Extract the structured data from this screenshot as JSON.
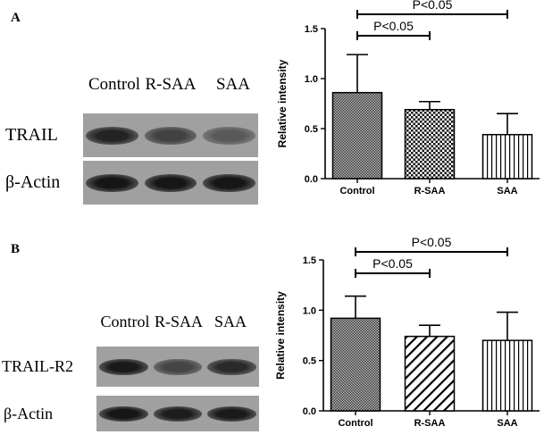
{
  "panels": [
    {
      "letter": "A",
      "blot": {
        "lanes": [
          "Control",
          "R-SAA",
          "SAA"
        ],
        "rows": [
          {
            "label": "TRAIL",
            "intensities": [
              0.85,
              0.62,
              0.45
            ]
          },
          {
            "label": "β-Actin",
            "intensities": [
              0.95,
              0.95,
              0.95
            ]
          }
        ]
      }
    },
    {
      "letter": "B",
      "blot": {
        "lanes": [
          "Control",
          "R-SAA",
          "SAA"
        ],
        "rows": [
          {
            "label": "TRAIL-R2",
            "intensities": [
              0.92,
              0.6,
              0.8
            ]
          },
          {
            "label": "β-Actin",
            "intensities": [
              0.95,
              0.9,
              0.92
            ]
          }
        ]
      }
    }
  ],
  "chart_data": [
    {
      "type": "bar",
      "categories": [
        "Control",
        "R-SAA",
        "SAA"
      ],
      "values": [
        0.86,
        0.69,
        0.44
      ],
      "errors": [
        0.38,
        0.08,
        0.21
      ],
      "ylabel": "Relative intensity",
      "ylim": [
        0,
        1.5
      ],
      "yticks": [
        "0.0",
        "0.5",
        "1.0",
        "1.5"
      ],
      "patterns": [
        "fine-dots",
        "checker",
        "vertical-lines"
      ],
      "significance": [
        {
          "from": 0,
          "to": 1,
          "label": "P<0.05"
        },
        {
          "from": 0,
          "to": 2,
          "label": "P<0.05"
        }
      ]
    },
    {
      "type": "bar",
      "categories": [
        "Control",
        "R-SAA",
        "SAA"
      ],
      "values": [
        0.92,
        0.74,
        0.7
      ],
      "errors": [
        0.22,
        0.11,
        0.28
      ],
      "ylabel": "Relative intensity",
      "ylim": [
        0,
        1.5
      ],
      "yticks": [
        "0.0",
        "0.5",
        "1.0",
        "1.5"
      ],
      "patterns": [
        "fine-dots",
        "diagonal-lines",
        "vertical-lines"
      ],
      "significance": [
        {
          "from": 0,
          "to": 1,
          "label": "P<0.05"
        },
        {
          "from": 0,
          "to": 2,
          "label": "P<0.05"
        }
      ]
    }
  ]
}
